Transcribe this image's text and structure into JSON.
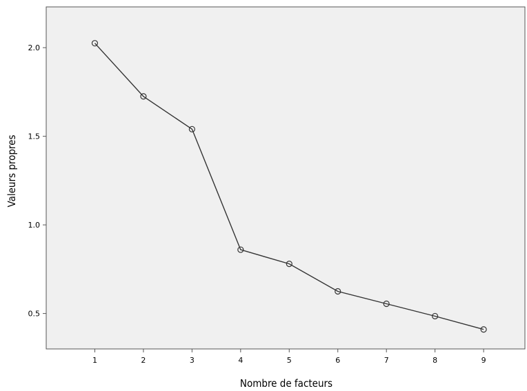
{
  "chart_data": {
    "type": "line",
    "title": "",
    "xlabel": "Nombre de facteurs",
    "ylabel": "Valeurs propres",
    "x": [
      1,
      2,
      3,
      4,
      5,
      6,
      7,
      8,
      9
    ],
    "series": [
      {
        "values": [
          2.025,
          1.725,
          1.54,
          0.86,
          0.78,
          0.625,
          0.555,
          0.485,
          0.41
        ],
        "color": "#333333",
        "marker": "circle"
      }
    ],
    "x_ticks": [
      "1",
      "2",
      "3",
      "4",
      "5",
      "6",
      "7",
      "8",
      "9"
    ],
    "y_ticks": [
      "0.5",
      "1.0",
      "1.5",
      "2.0"
    ],
    "xlim": [
      0,
      9.85
    ],
    "ylim": [
      0.3,
      2.23
    ],
    "grid": false,
    "legend": "none",
    "plot_background": "#f0f0f0"
  }
}
